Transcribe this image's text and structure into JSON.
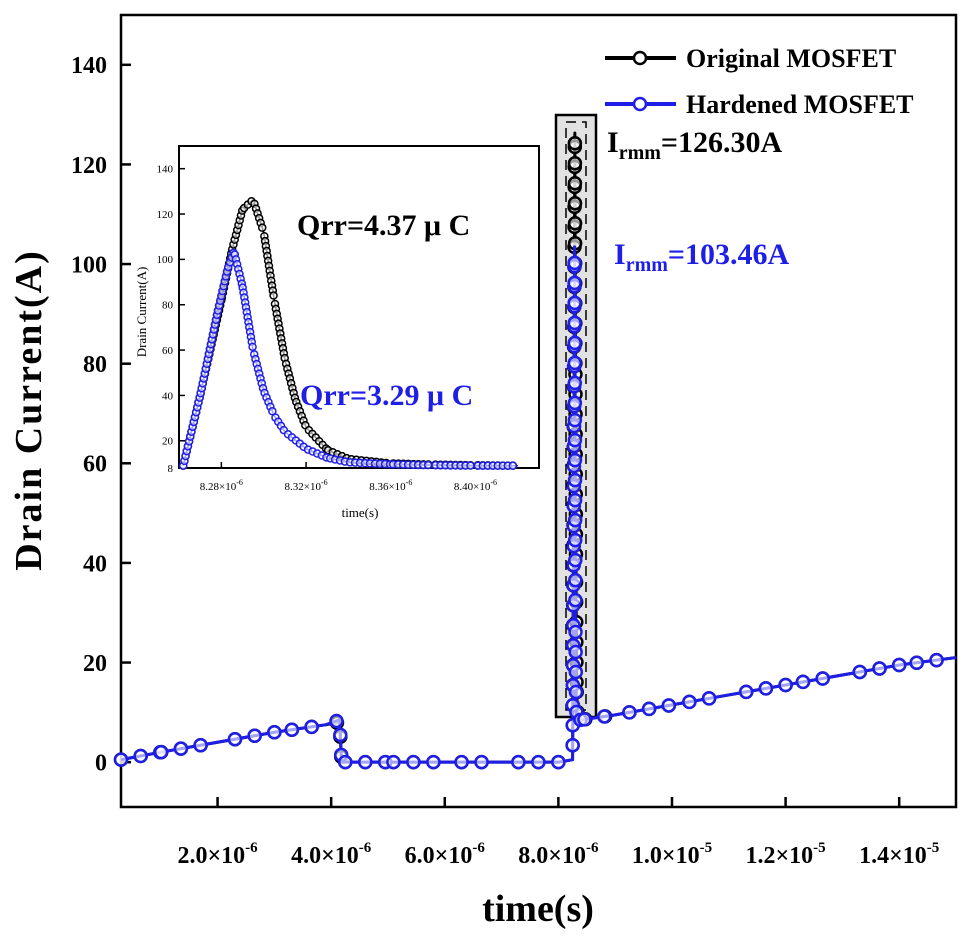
{
  "colors": {
    "original": "#000000",
    "hardened": "#1e1ee6",
    "axis": "#000000"
  },
  "chart_data": [
    {
      "type": "line",
      "xlabel": "time(s)",
      "ylabel": "Drain Current(A)",
      "xlim": [
        3e-07,
        1.5e-05
      ],
      "ylim": [
        -9,
        150
      ],
      "x_ticks": [
        {
          "value": 2e-06,
          "label": "2.0×10",
          "exp": "-6"
        },
        {
          "value": 4e-06,
          "label": "4.0×10",
          "exp": "-6"
        },
        {
          "value": 6e-06,
          "label": "6.0×10",
          "exp": "-6"
        },
        {
          "value": 8e-06,
          "label": "8.0×10",
          "exp": "-6"
        },
        {
          "value": 1e-05,
          "label": "1.0×10",
          "exp": "-5"
        },
        {
          "value": 1.2e-05,
          "label": "1.2×10",
          "exp": "-5"
        },
        {
          "value": 1.4e-05,
          "label": "1.4×10",
          "exp": "-5"
        }
      ],
      "y_ticks": [
        {
          "value": 0,
          "label": "0"
        },
        {
          "value": 20,
          "label": "20"
        },
        {
          "value": 40,
          "label": "40"
        },
        {
          "value": 60,
          "label": "60"
        },
        {
          "value": 80,
          "label": "80"
        },
        {
          "value": 100,
          "label": "100"
        },
        {
          "value": 120,
          "label": "120"
        },
        {
          "value": 140,
          "label": "140"
        }
      ],
      "legend": {
        "position": "top-right",
        "entries": [
          {
            "series": "original",
            "label": "Original MOSFET"
          },
          {
            "series": "hardened",
            "label": "Hardened MOSFET"
          }
        ]
      },
      "series": [
        {
          "name": "Original MOSFET",
          "x": [
            3e-07,
            1e-06,
            2e-06,
            3e-06,
            3.9e-06,
            4.15e-06,
            4.18e-06,
            4.2e-06,
            5e-06,
            6e-06,
            7e-06,
            8e-06,
            8.25e-06,
            8.27e-06,
            8.29e-06,
            8.3e-06,
            8.31e-06,
            8.32e-06,
            8.34e-06,
            8.4e-06,
            9e-06,
            1e-05,
            1.1e-05,
            1.2e-05,
            1.3e-05,
            1.4e-05,
            1.5e-05
          ],
          "y": [
            0.5,
            2.0,
            4.0,
            6.0,
            7.5,
            8.0,
            0.5,
            0.0,
            0.0,
            0.0,
            0.0,
            0.0,
            0.5,
            60,
            126.3,
            80,
            40,
            15,
            9.0,
            8.5,
            9.5,
            11.5,
            13.5,
            15.5,
            17.5,
            19.5,
            21.0
          ]
        },
        {
          "name": "Hardened MOSFET",
          "x": [
            3e-07,
            1e-06,
            2e-06,
            3e-06,
            3.9e-06,
            4.15e-06,
            4.18e-06,
            4.2e-06,
            5e-06,
            6e-06,
            7e-06,
            8e-06,
            8.25e-06,
            8.27e-06,
            8.285e-06,
            8.29e-06,
            8.3e-06,
            8.31e-06,
            8.32e-06,
            8.34e-06,
            8.4e-06,
            9e-06,
            1e-05,
            1.1e-05,
            1.2e-05,
            1.3e-05,
            1.4e-05,
            1.5e-05
          ],
          "y": [
            0.5,
            2.0,
            4.0,
            6.0,
            7.5,
            8.5,
            0.5,
            0.0,
            0.0,
            0.0,
            0.0,
            0.0,
            0.5,
            40,
            103.46,
            70,
            30,
            12,
            9.0,
            8.5,
            8.5,
            9.5,
            11.5,
            13.5,
            15.5,
            17.5,
            19.5,
            21.0
          ]
        }
      ],
      "annotations": [
        {
          "series": "original",
          "label": "I",
          "sub": "rmm",
          "value_text": "=126.30A"
        },
        {
          "series": "hardened",
          "label": "I",
          "sub": "rmm",
          "value_text": "=103.46A"
        }
      ]
    },
    {
      "type": "line",
      "role": "inset",
      "xlabel": "time(s)",
      "ylabel": "Drain Current(A)",
      "xlim": [
        8.26e-06,
        8.43e-06
      ],
      "ylim": [
        8,
        150
      ],
      "x_ticks": [
        {
          "value": 8.28e-06,
          "label": "8.28×10",
          "exp": "-6"
        },
        {
          "value": 8.32e-06,
          "label": "8.32×10",
          "exp": "-6"
        },
        {
          "value": 8.36e-06,
          "label": "8.36×10",
          "exp": "-6"
        },
        {
          "value": 8.4e-06,
          "label": "8.40×10",
          "exp": "-6"
        }
      ],
      "y_ticks": [
        {
          "value": 8,
          "label": "8"
        },
        {
          "value": 20,
          "label": "20"
        },
        {
          "value": 40,
          "label": "40"
        },
        {
          "value": 60,
          "label": "60"
        },
        {
          "value": 80,
          "label": "80"
        },
        {
          "value": 100,
          "label": "100"
        },
        {
          "value": 120,
          "label": "120"
        },
        {
          "value": 140,
          "label": "140"
        }
      ],
      "series": [
        {
          "name": "Original MOSFET",
          "x": [
            8.262e-06,
            8.27e-06,
            8.28e-06,
            8.285e-06,
            8.29e-06,
            8.295e-06,
            8.3e-06,
            8.305e-06,
            8.31e-06,
            8.315e-06,
            8.32e-06,
            8.33e-06,
            8.34e-06,
            8.36e-06,
            8.38e-06,
            8.4e-06,
            8.42e-06
          ],
          "y": [
            9,
            40,
            82,
            104,
            122,
            126.3,
            112,
            82,
            56,
            38,
            26,
            16,
            12,
            10,
            9.5,
            9.2,
            9.0
          ]
        },
        {
          "name": "Hardened MOSFET",
          "x": [
            8.262e-06,
            8.27e-06,
            8.278e-06,
            8.283e-06,
            8.286e-06,
            8.29e-06,
            8.295e-06,
            8.3e-06,
            8.305e-06,
            8.31e-06,
            8.32e-06,
            8.33e-06,
            8.34e-06,
            8.36e-06,
            8.38e-06,
            8.4e-06,
            8.42e-06
          ],
          "y": [
            9,
            40,
            76,
            96,
            103.46,
            88,
            60,
            42,
            31,
            24,
            16.5,
            12.5,
            10.5,
            9.6,
            9.2,
            9.0,
            9.0
          ]
        }
      ],
      "annotations": [
        {
          "series": "original",
          "text": "Qrr=4.37 μ C"
        },
        {
          "series": "hardened",
          "text": "Qrr=3.29 μ C"
        }
      ]
    }
  ]
}
